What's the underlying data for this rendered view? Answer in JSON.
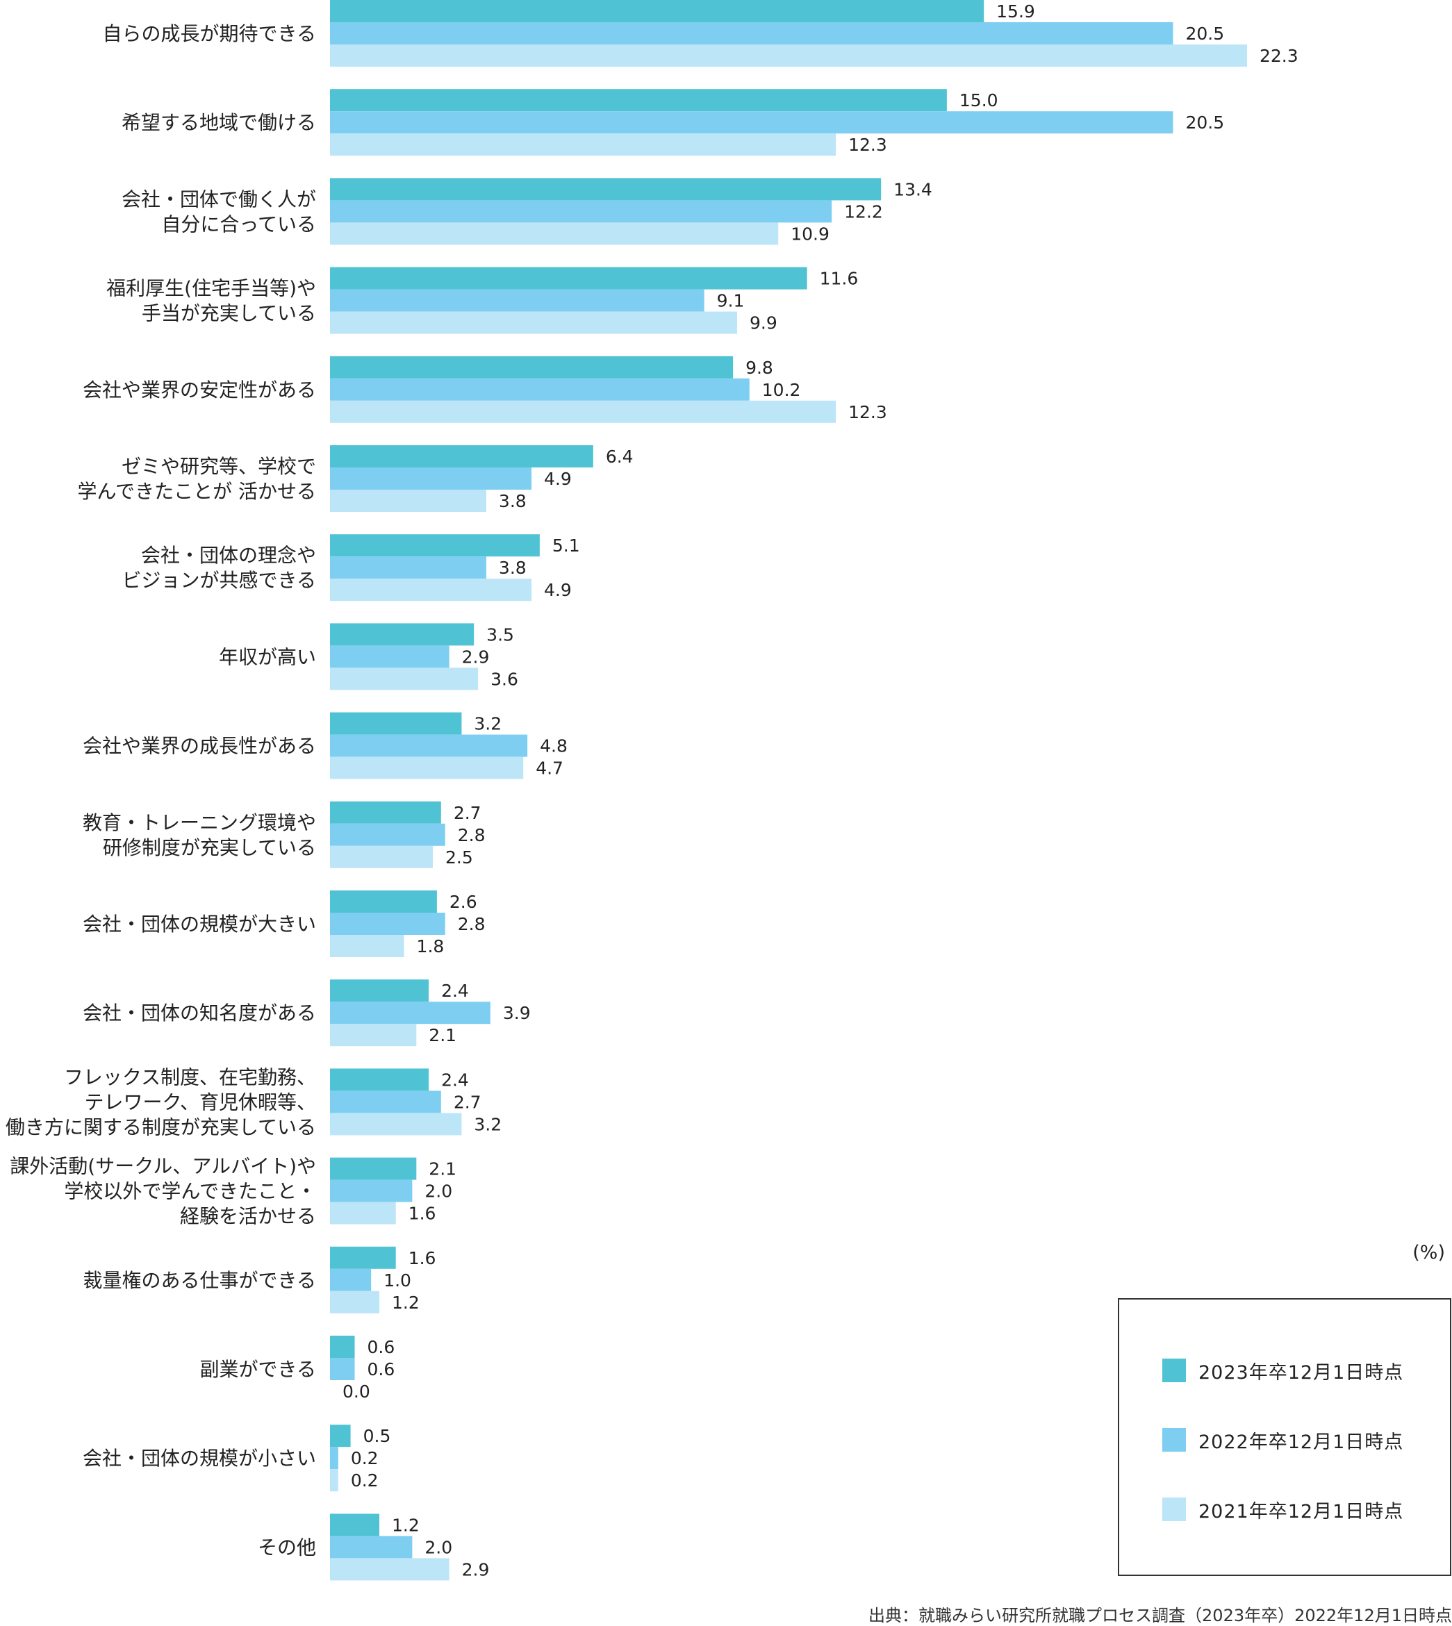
{
  "chart_data": {
    "type": "bar",
    "orientation": "horizontal",
    "unit": "(%)",
    "categories": [
      "自らの成長が期待できる",
      "希望する地域で働ける",
      "会社・団体で働く人が\n自分に合っている",
      "福利厚生(住宅手当等)や\n手当が充実している",
      "会社や業界の安定性がある",
      "ゼミや研究等、学校で\n学んできたことが 活かせる",
      "会社・団体の理念や\nビジョンが共感できる",
      "年収が高い",
      "会社や業界の成長性がある",
      "教育・トレーニング環境や\n研修制度が充実している",
      "会社・団体の規模が大きい",
      "会社・団体の知名度がある",
      "フレックス制度、在宅勤務、\nテレワーク、育児休暇等、\n働き方に関する制度が充実している",
      "課外活動(サークル、アルバイト)や\n学校以外で学んできたこと・\n経験を活かせる",
      "裁量権のある仕事ができる",
      "副業ができる",
      "会社・団体の規模が小さい",
      "その他"
    ],
    "series": [
      {
        "name": "2023年卒12月1日時点",
        "color": "#4FC3D3",
        "values": [
          "15.9",
          "15.0",
          "13.4",
          "11.6",
          "9.8",
          "6.4",
          "5.1",
          "3.5",
          "3.2",
          "2.7",
          "2.6",
          "2.4",
          "2.4",
          "2.1",
          "1.6",
          "0.6",
          "0.5",
          "1.2"
        ]
      },
      {
        "name": "2022年卒12月1日時点",
        "color": "#7ECEF2",
        "values": [
          "20.5",
          "20.5",
          "12.2",
          "9.1",
          "10.2",
          "4.9",
          "3.8",
          "2.9",
          "4.8",
          "2.8",
          "2.8",
          "3.9",
          "2.7",
          "2.0",
          "1.0",
          "0.6",
          "0.2",
          "2.0"
        ]
      },
      {
        "name": "2021年卒12月1日時点",
        "color": "#BDE5F8",
        "values": [
          "22.3",
          "12.3",
          "10.9",
          "9.9",
          "12.3",
          "3.8",
          "4.9",
          "3.6",
          "4.7",
          "2.5",
          "1.8",
          "2.1",
          "3.2",
          "1.6",
          "1.2",
          "0.0",
          "0.2",
          "2.9"
        ]
      }
    ],
    "xlim": [
      0,
      22.3
    ],
    "grid": false,
    "legend_position": "bottom-right"
  },
  "source": "出典：就職みらい研究所就職プロセス調査（2023年卒）2022年12月1日時点"
}
